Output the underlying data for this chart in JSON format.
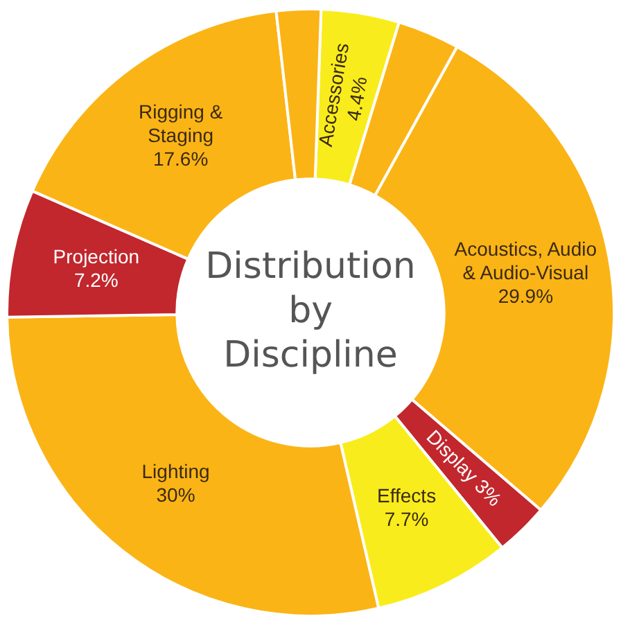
{
  "chart_data": {
    "type": "donut",
    "title": "Distribution by Discipline",
    "categories": [
      "Accessories",
      null,
      "Acoustics, Audio & Audio-Visual",
      "Display",
      "Effects",
      "Lighting",
      "Projection",
      "Rigging & Staging",
      null
    ],
    "values": [
      4.4,
      3.5,
      29.9,
      3,
      7.7,
      30,
      7.2,
      17.6,
      2.5
    ],
    "value_labels": [
      "4.4%",
      null,
      "29.9%",
      "3%",
      "7.7%",
      "30%",
      "7.2%",
      "17.6%",
      null
    ],
    "colors": [
      "#f9ec1c",
      "#fbb416",
      "#fbb416",
      "#c1272d",
      "#f9ec1c",
      "#fbb416",
      "#c1272d",
      "#fbb416",
      "#fbb416"
    ],
    "legend": false
  }
}
